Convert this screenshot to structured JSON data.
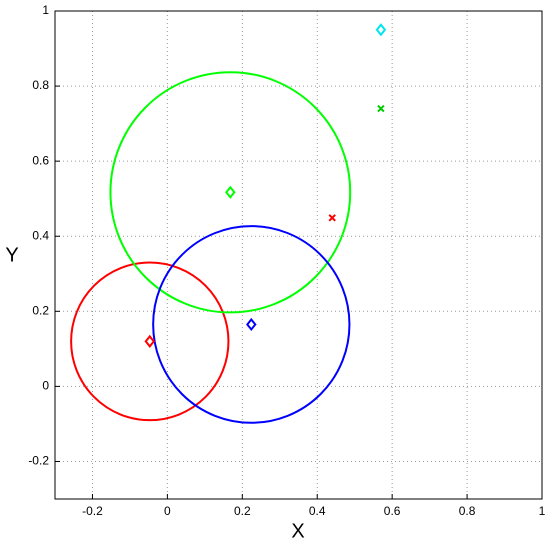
{
  "chart_data": {
    "type": "scatter",
    "xlabel": "X",
    "ylabel": "Y",
    "xlim": [
      -0.3,
      1
    ],
    "ylim": [
      -0.3,
      1
    ],
    "xticks": [
      -0.2,
      0,
      0.2,
      0.4,
      0.6,
      0.8,
      1
    ],
    "yticks": [
      -0.2,
      0,
      0.2,
      0.4,
      0.6,
      0.8,
      1
    ],
    "grid": true,
    "circles": [
      {
        "color": "#ff0000",
        "x": -0.047,
        "y": 0.12,
        "r": 0.21
      },
      {
        "color": "#00ff00",
        "x": 0.168,
        "y": 0.517,
        "r": 0.32
      },
      {
        "color": "#0000ff",
        "x": 0.224,
        "y": 0.165,
        "r": 0.262
      }
    ],
    "points": [
      {
        "marker": "diamond",
        "color": "#ff0000",
        "x": -0.047,
        "y": 0.12
      },
      {
        "marker": "diamond",
        "color": "#00ff00",
        "x": 0.168,
        "y": 0.517
      },
      {
        "marker": "diamond",
        "color": "#0000ff",
        "x": 0.224,
        "y": 0.165
      },
      {
        "marker": "diamond",
        "color": "#00e5ee",
        "x": 0.57,
        "y": 0.95
      },
      {
        "marker": "x",
        "color": "#ff0000",
        "x": 0.44,
        "y": 0.449
      },
      {
        "marker": "x",
        "color": "#00cc00",
        "x": 0.57,
        "y": 0.74
      }
    ]
  }
}
